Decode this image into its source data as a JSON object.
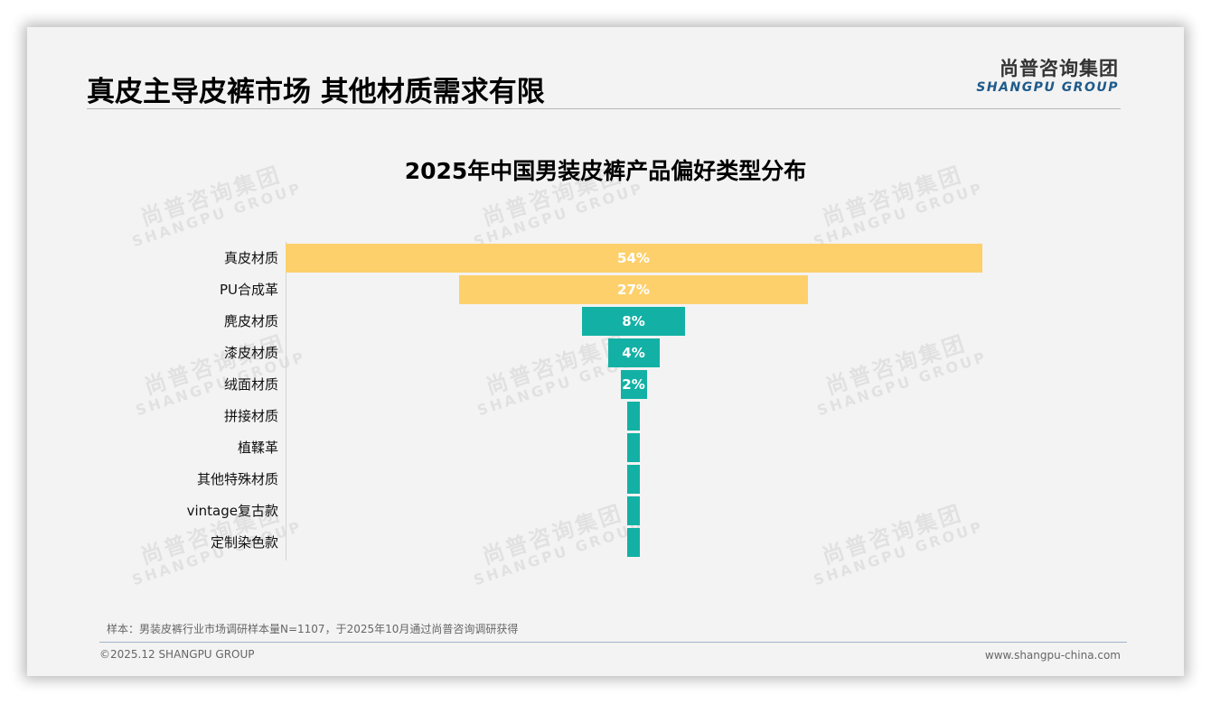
{
  "header": {
    "title": "真皮主导皮裤市场 其他材质需求有限",
    "logo_cn": "尚普咨询集团",
    "logo_en": "SHANGPU GROUP"
  },
  "watermark": {
    "cn": "尚普咨询集团",
    "en": "SHANGPU GROUP"
  },
  "colors": {
    "top_bars": "#fdd06c",
    "other_bars": "#13b1a5",
    "brand_blue": "#1f5a8a"
  },
  "chart_data": {
    "type": "bar",
    "subtype": "funnel",
    "title": "2025年中国男装皮裤产品偏好类型分布",
    "xlabel": "",
    "ylabel": "",
    "grid": false,
    "legend": null,
    "categories": [
      "真皮材质",
      "PU合成革",
      "麂皮材质",
      "漆皮材质",
      "绒面材质",
      "拼接材质",
      "植鞣革",
      "其他特殊材质",
      "vintage复古款",
      "定制染色款"
    ],
    "values": [
      54,
      27,
      8,
      4,
      2,
      1,
      1,
      1,
      1,
      1
    ],
    "data_labels": [
      "54%",
      "27%",
      "8%",
      "4%",
      "2%",
      "",
      "",
      "",
      "",
      ""
    ],
    "unit": "%",
    "bar_colors": [
      "#fdd06c",
      "#fdd06c",
      "#13b1a5",
      "#13b1a5",
      "#13b1a5",
      "#13b1a5",
      "#13b1a5",
      "#13b1a5",
      "#13b1a5",
      "#13b1a5"
    ]
  },
  "footer": {
    "note": "样本：男装皮裤行业市场调研样本量N=1107，于2025年10月通过尚普咨询调研获得",
    "copyright": "©2025.12 SHANGPU GROUP",
    "website": "www.shangpu-china.com"
  }
}
